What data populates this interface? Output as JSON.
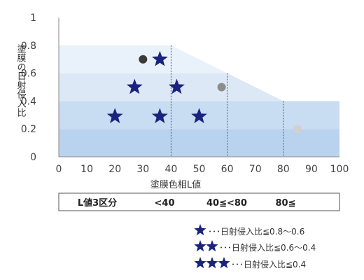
{
  "chart_data": {
    "type": "scatter",
    "xlabel": "塗膜色相L値",
    "ylabel": "塗膜の日射侵入比",
    "xlim": [
      0,
      100
    ],
    "ylim": [
      0,
      1
    ],
    "x_ticks": [
      "0",
      "10",
      "20",
      "30",
      "40",
      "50",
      "60",
      "70",
      "80",
      "90",
      "100"
    ],
    "y_ticks": [
      "0",
      "0.2",
      "0.4",
      "0.6",
      "0.8",
      "1"
    ],
    "y_tick_values": [
      0,
      0.2,
      0.4,
      0.6,
      0.8,
      1
    ],
    "grid": false,
    "bands": {
      "colors": [
        "#b9d3ef",
        "#c8dcf2",
        "#dce8f6",
        "#e9f1fa"
      ],
      "levels": [
        0.2,
        0.4,
        0.6,
        0.8
      ],
      "limit_line": [
        {
          "x": 0,
          "y": 0.8
        },
        {
          "x": 40,
          "y": 0.8
        },
        {
          "x": 60,
          "y": 0.6
        },
        {
          "x": 80,
          "y": 0.4
        },
        {
          "x": 100,
          "y": 0.4
        }
      ],
      "dividers": [
        40,
        60,
        80
      ]
    },
    "stars": [
      {
        "x": 36,
        "y": 0.7,
        "count": 1
      },
      {
        "x": 27,
        "y": 0.5,
        "count": 2
      },
      {
        "x": 42,
        "y": 0.5,
        "count": 2
      },
      {
        "x": 20,
        "y": 0.29,
        "count": 3
      },
      {
        "x": 36,
        "y": 0.29,
        "count": 3
      },
      {
        "x": 50,
        "y": 0.29,
        "count": 3
      }
    ],
    "dots": [
      {
        "x": 30,
        "y": 0.7,
        "color": "#3a3a3a"
      },
      {
        "x": 58,
        "y": 0.5,
        "color": "#8c8c8c"
      },
      {
        "x": 85,
        "y": 0.2,
        "color": "#d0d0d0"
      }
    ],
    "colors": {
      "star": "#1a237e",
      "axis": "#888888",
      "divider": "#555555"
    }
  },
  "zone_table": {
    "header": "L値3区分",
    "zones": [
      "<40",
      "40≦<80",
      "80≦"
    ]
  },
  "legend": [
    {
      "stars": 1,
      "text": "･･･日射侵入比≦0.8～0.6"
    },
    {
      "stars": 2,
      "text": "･･･日射侵入比≦0.6～0.4"
    },
    {
      "stars": 3,
      "text": "･･･日射侵入比≦0.4"
    }
  ]
}
